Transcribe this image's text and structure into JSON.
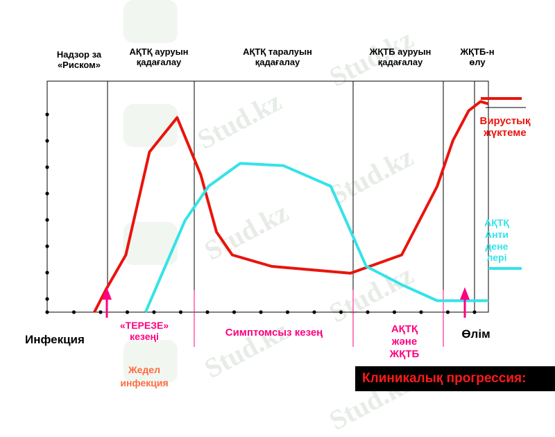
{
  "watermark": "Stud.kz",
  "phases": {
    "risk_surveillance": "Надзор за\n«Риском»",
    "hiv_disease_monitoring": "АҚТҚ ауруын\nқадағалау",
    "hiv_spread_monitoring": "АҚТҚ таралуын\nқадағалау",
    "aids_disease_monitoring": "ЖҚТБ ауруын\nқадағалау",
    "aids_death": "ЖҚТБ-н\nөлу"
  },
  "legend": {
    "viral_load": "Вирустық\nжүктеме",
    "antibodies": "АҚТҚ\nАнти\nдене\nлері"
  },
  "bottom": {
    "infection": "Инфекция",
    "window_period": "«ТЕРЕЗЕ»\nкезеңі",
    "acute_infection": "Жедел\nинфекция",
    "asymptomatic_period": "Симптомсыз кезең",
    "hiv_and_aids": "АҚТҚ\nжәне\nЖҚТБ",
    "death": "Өлім",
    "clinical_progression": "Клиникалық прогрессия:"
  },
  "colors": {
    "viral_load": "#e8140c",
    "antibodies": "#33e3e8",
    "accent": "#ff0080",
    "acute": "#ff6a3c",
    "axis": "#000000"
  },
  "chart_data": {
    "type": "line",
    "x_unit": "time (no scale printed)",
    "series": [
      {
        "name": "Вирустық жүктеме",
        "x": [
          0,
          3,
          8,
          14,
          21,
          27,
          31,
          35,
          45,
          65,
          78,
          87,
          91,
          95,
          98,
          100
        ],
        "y": [
          0,
          10,
          25,
          70,
          85,
          60,
          35,
          25,
          20,
          17,
          25,
          55,
          75,
          88,
          92,
          91
        ]
      },
      {
        "name": "АҚТҚ Анти дене лері",
        "x": [
          13,
          23,
          29,
          37,
          48,
          60,
          69,
          78,
          87,
          100
        ],
        "y": [
          0,
          40,
          55,
          65,
          64,
          55,
          20,
          12,
          5,
          5
        ]
      }
    ]
  }
}
